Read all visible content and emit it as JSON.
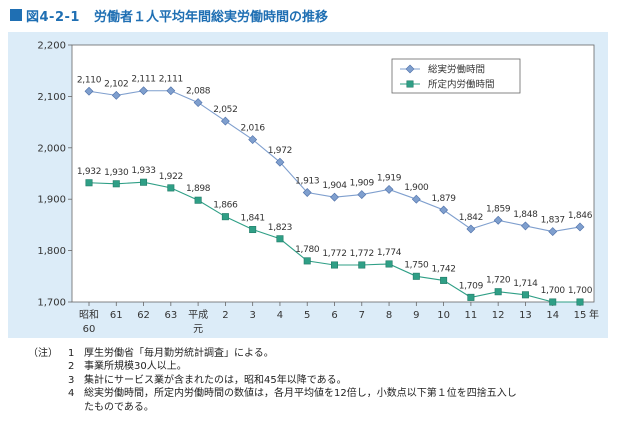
{
  "figure": {
    "label": "図4-2-1",
    "title": "労働者１人平均年間総実労働時間の推移"
  },
  "chart_data": {
    "type": "line",
    "categories": [
      "昭和\n60",
      "61",
      "62",
      "63",
      "平成\n元",
      "2",
      "3",
      "4",
      "5",
      "6",
      "7",
      "8",
      "9",
      "10",
      "11",
      "12",
      "13",
      "14",
      "15"
    ],
    "x_unit": "年",
    "ylim": [
      1700,
      2200
    ],
    "yticks": [
      "1,700",
      "1,800",
      "1,900",
      "2,000",
      "2,100",
      "2,200"
    ],
    "grid": false,
    "legend_position": "top-right",
    "series": [
      {
        "name": "総実労働時間",
        "marker": "diamond",
        "color": "#7f9fce",
        "values": [
          2110,
          2102,
          2111,
          2111,
          2088,
          2052,
          2016,
          1972,
          1913,
          1904,
          1909,
          1919,
          1900,
          1879,
          1842,
          1859,
          1848,
          1837,
          1846
        ],
        "labels": [
          "2,110",
          "2,102",
          "2,111",
          "2,111",
          "2,088",
          "2,052",
          "2,016",
          "1,972",
          "1,913",
          "1,904",
          "1,909",
          "1,919",
          "1,900",
          "1,879",
          "1,842",
          "1,859",
          "1,848",
          "1,837",
          "1,846"
        ]
      },
      {
        "name": "所定内労働時間",
        "marker": "square",
        "color": "#2f9f86",
        "values": [
          1932,
          1930,
          1933,
          1922,
          1898,
          1866,
          1841,
          1823,
          1780,
          1772,
          1772,
          1774,
          1750,
          1742,
          1709,
          1720,
          1714,
          1700,
          1700
        ],
        "labels": [
          "1,932",
          "1,930",
          "1,933",
          "1,922",
          "1,898",
          "1,866",
          "1,841",
          "1,823",
          "1,780",
          "1,772",
          "1,772",
          "1,774",
          "1,750",
          "1,742",
          "1,709",
          "1,720",
          "1,714",
          "1,700",
          "1,700"
        ]
      }
    ]
  },
  "notes": {
    "head": "（注）",
    "items": [
      {
        "num": "1",
        "text": "厚生労働省「毎月勤労統計調査」による。"
      },
      {
        "num": "2",
        "text": "事業所規模30人以上。"
      },
      {
        "num": "3",
        "text": "集計にサービス業が含まれたのは，昭和45年以降である。"
      },
      {
        "num": "4",
        "text": "総実労働時間，所定内労働時間の数値は，各月平均値を12倍し，小数点以下第１位を四捨五入し"
      }
    ],
    "continuation": "たものである。"
  }
}
